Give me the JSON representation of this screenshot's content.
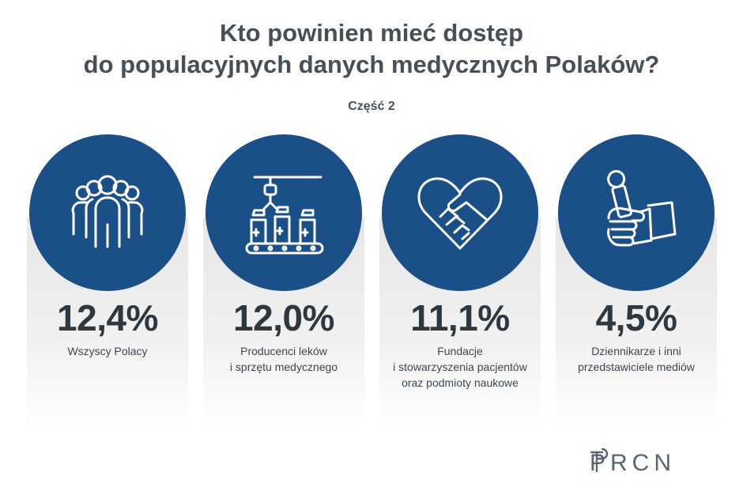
{
  "header": {
    "title_line1": "Kto powinien mieć dostęp",
    "title_line2": "do populacyjnych danych medycznych Polaków?",
    "subtitle": "Część 2"
  },
  "chart_data": {
    "type": "table",
    "title": "Kto powinien mieć dostęp do populacyjnych danych medycznych Polaków?",
    "subtitle": "Część 2",
    "unit": "%",
    "categories": [
      "Wszyscy Polacy",
      "Producenci leków i sprzętu medycznego",
      "Fundacje i stowarzyszenia pacjentów oraz podmioty naukowe",
      "Dziennikarze i inni przedstawiciele mediów"
    ],
    "values": [
      12.4,
      12.0,
      11.1,
      4.5
    ]
  },
  "cards": [
    {
      "icon": "people-group-icon",
      "value_text": "12,4%",
      "label_lines": [
        "Wszyscy Polacy"
      ]
    },
    {
      "icon": "production-line-icon",
      "value_text": "12,0%",
      "label_lines": [
        "Producenci leków",
        "i sprzętu medycznego"
      ]
    },
    {
      "icon": "handshake-heart-icon",
      "value_text": "11,1%",
      "label_lines": [
        "Fundacje",
        "i stowarzyszenia pacjentów",
        "oraz podmioty naukowe"
      ]
    },
    {
      "icon": "microphone-hand-icon",
      "value_text": "4,5%",
      "label_lines": [
        "Dziennikarze i inni",
        "przedstawiciele mediów"
      ]
    }
  ],
  "logo": {
    "text": "PRCN",
    "icon": "prcn-logo-icon"
  },
  "colors": {
    "circle": "#1b4f88",
    "title": "#474f57",
    "value": "#2e3840",
    "icon_stroke": "#ffffff"
  }
}
